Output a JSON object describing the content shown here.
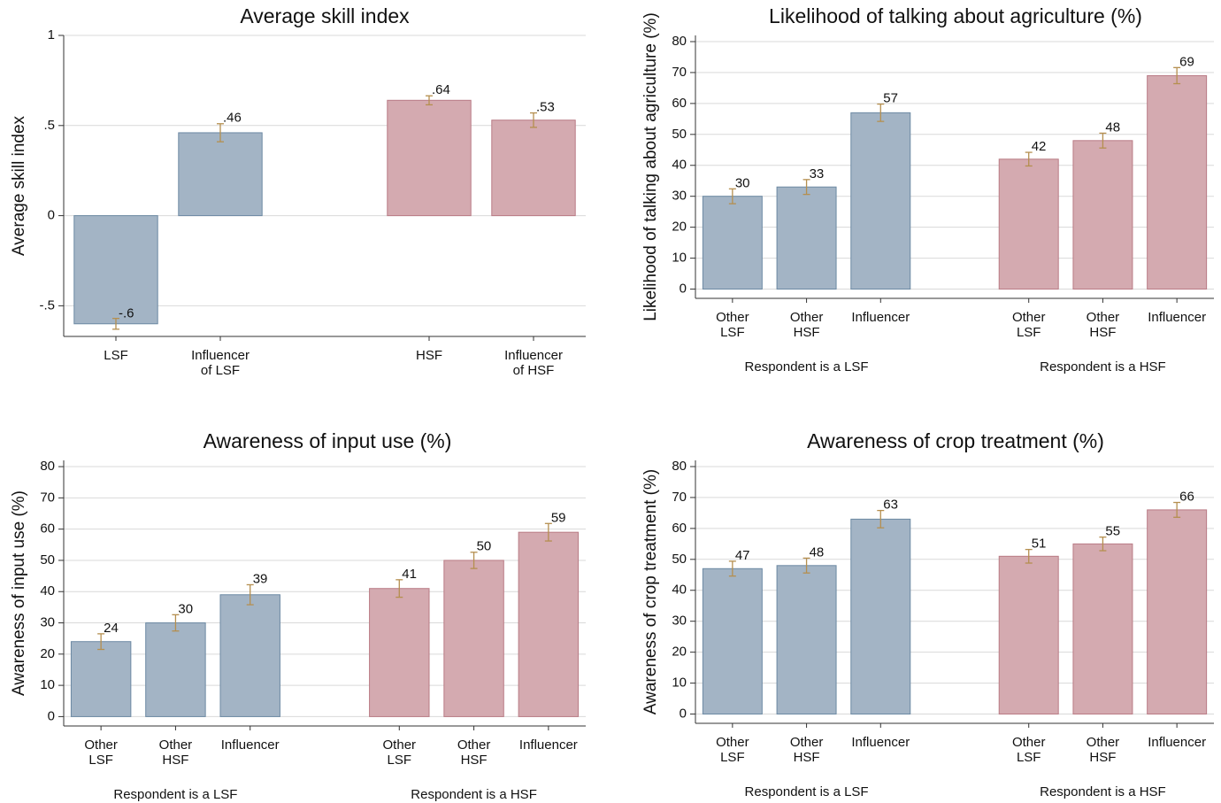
{
  "chart_data": [
    {
      "type": "bar",
      "title": "Average skill index",
      "y_label": "Average skill index",
      "ylim": [
        -0.67,
        1
      ],
      "yticks": [
        {
          "value": -0.5,
          "label": "-.5"
        },
        0,
        {
          "value": 0.5,
          "label": ".5"
        },
        1
      ],
      "grid": true,
      "groups": [
        {
          "color": "#a3b4c5",
          "edge": "#6c89a3",
          "categories": [
            "LSF",
            "Influencer\nof LSF"
          ],
          "values": [
            -0.6,
            0.46
          ],
          "value_labels": [
            "-.6",
            ".46"
          ],
          "errors": [
            0.03,
            0.05
          ]
        },
        {
          "color": "#d4aab0",
          "edge": "#b97b85",
          "categories": [
            "HSF",
            "Influencer\nof HSF"
          ],
          "values": [
            0.64,
            0.53
          ],
          "value_labels": [
            ".64",
            ".53"
          ],
          "errors": [
            0.025,
            0.04
          ]
        }
      ]
    },
    {
      "type": "bar",
      "title": "Likelihood of talking about agriculture (%)",
      "y_label": "Likelihood of talking about agriculture (%)",
      "ylim": [
        -3,
        82
      ],
      "yticks": [
        0,
        10,
        20,
        30,
        40,
        50,
        60,
        70,
        80
      ],
      "grid": true,
      "groups": [
        {
          "name": "Respondent is a LSF",
          "color": "#a3b4c5",
          "edge": "#6c89a3",
          "categories": [
            "Other\nLSF",
            "Other\nHSF",
            "Influencer"
          ],
          "values": [
            30,
            33,
            57
          ],
          "errors": [
            2.4,
            2.4,
            2.8
          ]
        },
        {
          "name": "Respondent is a HSF",
          "color": "#d4aab0",
          "edge": "#b97b85",
          "categories": [
            "Other\nLSF",
            "Other\nHSF",
            "Influencer"
          ],
          "values": [
            42,
            48,
            69
          ],
          "errors": [
            2.2,
            2.4,
            2.6
          ]
        }
      ]
    },
    {
      "type": "bar",
      "title": "Awareness of input use (%)",
      "y_label": "Awareness of input use (%)",
      "ylim": [
        -3,
        82
      ],
      "yticks": [
        0,
        10,
        20,
        30,
        40,
        50,
        60,
        70,
        80
      ],
      "grid": true,
      "groups": [
        {
          "name": "Respondent is a LSF",
          "color": "#a3b4c5",
          "edge": "#6c89a3",
          "categories": [
            "Other\nLSF",
            "Other\nHSF",
            "Influencer"
          ],
          "values": [
            24,
            30,
            39
          ],
          "errors": [
            2.5,
            2.6,
            3.2
          ]
        },
        {
          "name": "Respondent is a HSF",
          "color": "#d4aab0",
          "edge": "#b97b85",
          "categories": [
            "Other\nLSF",
            "Other\nHSF",
            "Influencer"
          ],
          "values": [
            41,
            50,
            59
          ],
          "errors": [
            2.8,
            2.6,
            2.8
          ]
        }
      ]
    },
    {
      "type": "bar",
      "title": "Awareness of crop treatment (%)",
      "y_label": "Awareness of crop treatment (%)",
      "ylim": [
        -3,
        82
      ],
      "yticks": [
        0,
        10,
        20,
        30,
        40,
        50,
        60,
        70,
        80
      ],
      "grid": true,
      "groups": [
        {
          "name": "Respondent is a LSF",
          "color": "#a3b4c5",
          "edge": "#6c89a3",
          "categories": [
            "Other\nLSF",
            "Other\nHSF",
            "Influencer"
          ],
          "values": [
            47,
            48,
            63
          ],
          "errors": [
            2.4,
            2.4,
            2.8
          ]
        },
        {
          "name": "Respondent is a HSF",
          "color": "#d4aab0",
          "edge": "#b97b85",
          "categories": [
            "Other\nLSF",
            "Other\nHSF",
            "Influencer"
          ],
          "values": [
            51,
            55,
            66
          ],
          "errors": [
            2.2,
            2.2,
            2.4
          ]
        }
      ]
    }
  ]
}
